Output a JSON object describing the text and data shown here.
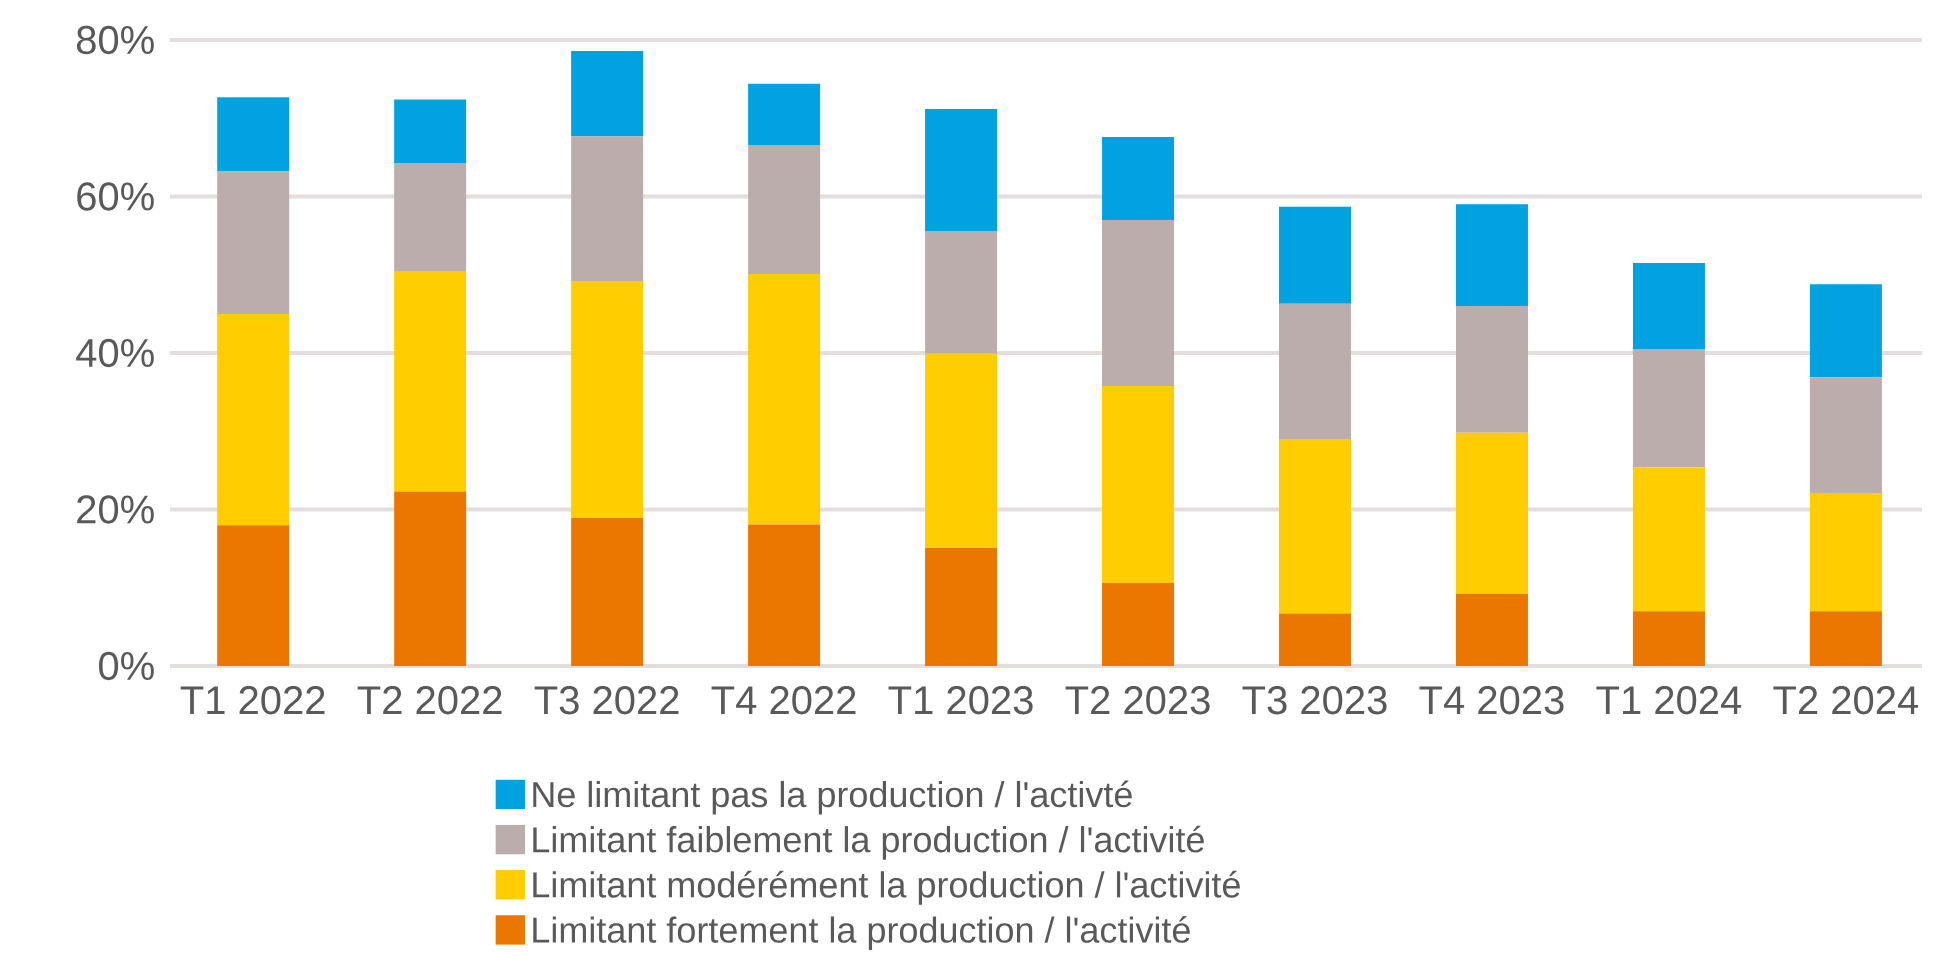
{
  "chart_data": {
    "type": "bar",
    "stacked": true,
    "categories": [
      "T1 2022",
      "T2 2022",
      "T3 2022",
      "T4 2022",
      "T1 2023",
      "T2 2023",
      "T3 2023",
      "T4 2023",
      "T1 2024",
      "T2 2024"
    ],
    "series": [
      {
        "name": "Limitant fortement la production / l'activité",
        "color": "#eb7700",
        "values": [
          18.0,
          22.3,
          18.9,
          18.1,
          15.1,
          10.6,
          6.7,
          9.2,
          7.0,
          7.0
        ]
      },
      {
        "name": "Limitant modérément la production / l'activité",
        "color": "#ffcd00",
        "values": [
          27.0,
          28.1,
          30.3,
          32.0,
          24.8,
          25.2,
          22.2,
          20.6,
          18.4,
          15.1
        ]
      },
      {
        "name": "Limitant faiblement la production / l'activité",
        "color": "#bcadad",
        "values": [
          18.2,
          13.9,
          18.5,
          16.5,
          15.7,
          21.2,
          17.4,
          16.2,
          15.1,
          14.8
        ]
      },
      {
        "name": "Ne limitant pas la production / l'activté",
        "color": "#00a3e0",
        "values": [
          9.5,
          8.1,
          10.9,
          7.8,
          15.6,
          10.6,
          12.4,
          13.0,
          11.0,
          11.9
        ]
      }
    ],
    "ylim": [
      0,
      80
    ],
    "yticks": [
      {
        "value": 0,
        "label": "0%"
      },
      {
        "value": 20,
        "label": "20%"
      },
      {
        "value": 40,
        "label": "40%"
      },
      {
        "value": 60,
        "label": "60%"
      },
      {
        "value": 80,
        "label": "80%"
      }
    ],
    "grid": "y",
    "legend": "bottom"
  }
}
